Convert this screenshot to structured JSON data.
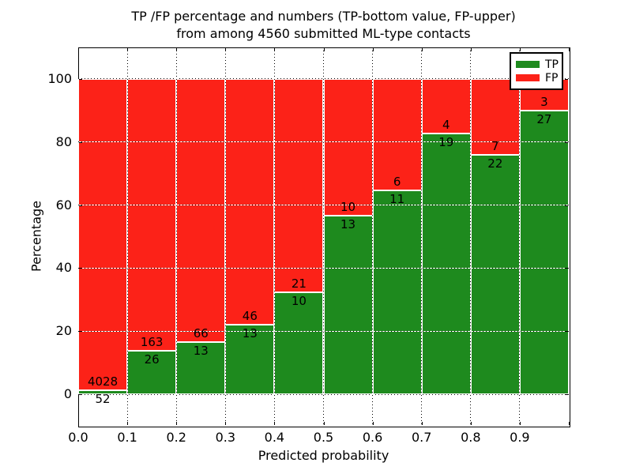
{
  "title": {
    "line1": "TP /FP percentage and numbers (TP-bottom value, FP-upper)",
    "line2": "from among 4560 submitted ML-type contacts"
  },
  "axes": {
    "xlabel": "Predicted probability",
    "ylabel": "Percentage",
    "x_tick_labels": [
      "0.0",
      "0.1",
      "0.2",
      "0.3",
      "0.4",
      "0.5",
      "0.6",
      "0.7",
      "0.8",
      "0.9"
    ],
    "y_tick_labels": [
      "0",
      "20",
      "40",
      "60",
      "80",
      "100"
    ],
    "y_tick_values": [
      0,
      20,
      40,
      60,
      80,
      100
    ]
  },
  "legend": {
    "entries": [
      {
        "label": "TP",
        "color": "#1e8a1e"
      },
      {
        "label": "FP",
        "color": "#fc2218"
      }
    ]
  },
  "chart_data": {
    "type": "bar",
    "subtype": "stacked-percentage",
    "title": "TP /FP percentage and numbers (TP-bottom value, FP-upper) from among 4560 submitted ML-type contacts",
    "xlabel": "Predicted probability",
    "ylabel": "Percentage",
    "xlim": [
      0.0,
      1.0
    ],
    "ylim": [
      -10,
      110
    ],
    "grid": "dotted, at x ticks 0.1-0.9 and y ticks 0-100",
    "legend_position": "upper right",
    "bin_starts": [
      0.0,
      0.1,
      0.2,
      0.3,
      0.4,
      0.5,
      0.6,
      0.7,
      0.8,
      0.9
    ],
    "bin_width": 0.1,
    "total_contacts": 4560,
    "series": [
      {
        "name": "TP",
        "color": "#1e8a1e",
        "counts": [
          52,
          26,
          13,
          13,
          10,
          13,
          11,
          19,
          22,
          27
        ],
        "percent": [
          1.27,
          13.76,
          16.46,
          22.03,
          32.26,
          56.52,
          64.71,
          82.61,
          75.86,
          90.0
        ]
      },
      {
        "name": "FP",
        "color": "#fc2218",
        "counts": [
          4028,
          163,
          66,
          46,
          21,
          10,
          6,
          4,
          7,
          3
        ],
        "percent": [
          98.73,
          86.24,
          83.54,
          77.97,
          67.74,
          43.48,
          35.29,
          17.39,
          24.14,
          10.0
        ]
      }
    ]
  }
}
